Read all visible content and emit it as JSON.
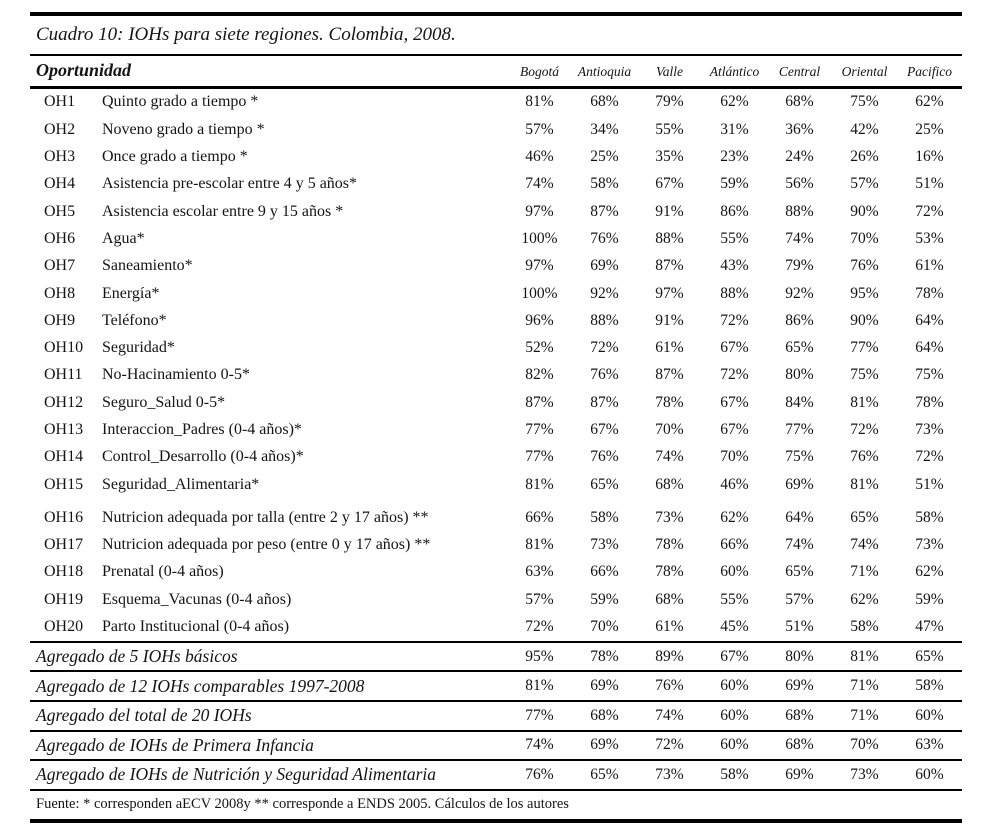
{
  "table": {
    "title": "Cuadro 10: IOHs para siete regiones. Colombia, 2008.",
    "header": {
      "first_col": "Oportunidad",
      "regions": [
        "Bogotá",
        "Antioquia",
        "Valle",
        "Atlántico",
        "Central",
        "Oriental",
        "Pacifico"
      ]
    },
    "rows": [
      {
        "code": "OH1",
        "label": "Quinto grado a tiempo *",
        "values": [
          "81%",
          "68%",
          "79%",
          "62%",
          "68%",
          "75%",
          "62%"
        ]
      },
      {
        "code": "OH2",
        "label": "Noveno grado a tiempo *",
        "values": [
          "57%",
          "34%",
          "55%",
          "31%",
          "36%",
          "42%",
          "25%"
        ]
      },
      {
        "code": "OH3",
        "label": "Once grado a tiempo *",
        "values": [
          "46%",
          "25%",
          "35%",
          "23%",
          "24%",
          "26%",
          "16%"
        ]
      },
      {
        "code": "OH4",
        "label": "Asistencia pre-escolar entre 4 y 5 años*",
        "values": [
          "74%",
          "58%",
          "67%",
          "59%",
          "56%",
          "57%",
          "51%"
        ]
      },
      {
        "code": "OH5",
        "label": "Asistencia escolar entre 9 y 15 años *",
        "values": [
          "97%",
          "87%",
          "91%",
          "86%",
          "88%",
          "90%",
          "72%"
        ]
      },
      {
        "code": "OH6",
        "label": "Agua*",
        "values": [
          "100%",
          "76%",
          "88%",
          "55%",
          "74%",
          "70%",
          "53%"
        ]
      },
      {
        "code": "OH7",
        "label": "Saneamiento*",
        "values": [
          "97%",
          "69%",
          "87%",
          "43%",
          "79%",
          "76%",
          "61%"
        ]
      },
      {
        "code": "OH8",
        "label": "Energía*",
        "values": [
          "100%",
          "92%",
          "97%",
          "88%",
          "92%",
          "95%",
          "78%"
        ]
      },
      {
        "code": "OH9",
        "label": "Teléfono*",
        "values": [
          "96%",
          "88%",
          "91%",
          "72%",
          "86%",
          "90%",
          "64%"
        ]
      },
      {
        "code": "OH10",
        "label": "Seguridad*",
        "values": [
          "52%",
          "72%",
          "61%",
          "67%",
          "65%",
          "77%",
          "64%"
        ]
      },
      {
        "code": "OH11",
        "label": "No-Hacinamiento 0-5*",
        "values": [
          "82%",
          "76%",
          "87%",
          "72%",
          "80%",
          "75%",
          "75%"
        ]
      },
      {
        "code": "OH12",
        "label": "Seguro_Salud 0-5*",
        "values": [
          "87%",
          "87%",
          "78%",
          "67%",
          "84%",
          "81%",
          "78%"
        ]
      },
      {
        "code": "OH13",
        "label": "Interaccion_Padres (0-4 años)*",
        "values": [
          "77%",
          "67%",
          "70%",
          "67%",
          "77%",
          "72%",
          "73%"
        ]
      },
      {
        "code": "OH14",
        "label": "Control_Desarrollo (0-4 años)*",
        "values": [
          "77%",
          "76%",
          "74%",
          "70%",
          "75%",
          "76%",
          "72%"
        ]
      },
      {
        "code": "OH15",
        "label": "Seguridad_Alimentaria*",
        "values": [
          "81%",
          "65%",
          "68%",
          "46%",
          "69%",
          "81%",
          "51%"
        ]
      },
      {
        "code": "OH16",
        "label": "Nutricion adequada por talla (entre 2 y 17 años) **",
        "values": [
          "66%",
          "58%",
          "73%",
          "62%",
          "64%",
          "65%",
          "58%"
        ]
      },
      {
        "code": "OH17",
        "label": "Nutricion adequada por peso (entre 0 y 17 años) **",
        "values": [
          "81%",
          "73%",
          "78%",
          "66%",
          "74%",
          "74%",
          "73%"
        ]
      },
      {
        "code": "OH18",
        "label": "Prenatal (0-4 años)",
        "values": [
          "63%",
          "66%",
          "78%",
          "60%",
          "65%",
          "71%",
          "62%"
        ]
      },
      {
        "code": "OH19",
        "label": "Esquema_Vacunas (0-4 años)",
        "values": [
          "57%",
          "59%",
          "68%",
          "55%",
          "57%",
          "62%",
          "59%"
        ]
      },
      {
        "code": "OH20",
        "label": "Parto Institucional (0-4 años)",
        "values": [
          "72%",
          "70%",
          "61%",
          "45%",
          "51%",
          "58%",
          "47%"
        ]
      }
    ],
    "aggregates": [
      {
        "label": "Agregado de 5 IOHs básicos",
        "values": [
          "95%",
          "78%",
          "89%",
          "67%",
          "80%",
          "81%",
          "65%"
        ]
      },
      {
        "label": "Agregado de 12 IOHs comparables 1997-2008",
        "values": [
          "81%",
          "69%",
          "76%",
          "60%",
          "69%",
          "71%",
          "58%"
        ]
      },
      {
        "label": "Agregado del total de 20 IOHs",
        "values": [
          "77%",
          "68%",
          "74%",
          "60%",
          "68%",
          "71%",
          "60%"
        ]
      },
      {
        "label": "Agregado de IOHs de Primera Infancia",
        "values": [
          "74%",
          "69%",
          "72%",
          "60%",
          "68%",
          "70%",
          "63%"
        ]
      },
      {
        "label": "Agregado de IOHs de Nutrición y Seguridad Alimentaria",
        "values": [
          "76%",
          "65%",
          "73%",
          "58%",
          "69%",
          "73%",
          "60%"
        ]
      }
    ],
    "footnote": "Fuente: * corresponden aECV 2008y ** corresponde a ENDS 2005. Cálculos de los autores"
  }
}
